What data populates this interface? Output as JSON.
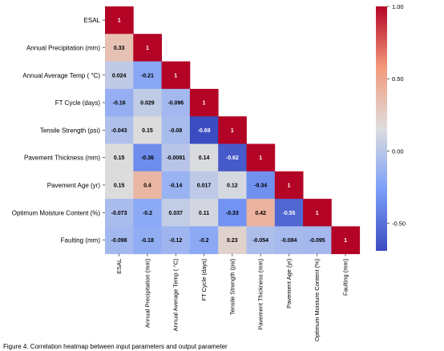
{
  "chart_data": {
    "type": "heatmap",
    "title": "",
    "variables": [
      "ESAL",
      "Annual Precipitation (mm)",
      "Annual Average Temp ( °C)",
      "FT Cycle (days)",
      "Tensile Strength (psi)",
      "Pavement Thickness (mm)",
      "Pavement Age (yr)",
      "Optimum Moisture Content (%)",
      "Faulting (mm)"
    ],
    "matrix": [
      [
        1
      ],
      [
        0.33,
        1
      ],
      [
        0.024,
        -0.21,
        1
      ],
      [
        -0.16,
        0.029,
        -0.096,
        1
      ],
      [
        -0.043,
        0.15,
        -0.08,
        -0.69,
        1
      ],
      [
        0.15,
        -0.36,
        -0.0081,
        0.14,
        -0.62,
        1
      ],
      [
        0.15,
        0.4,
        -0.14,
        0.017,
        0.12,
        -0.34,
        1
      ],
      [
        -0.073,
        -0.2,
        0.037,
        0.11,
        -0.33,
        0.42,
        -0.55,
        1
      ],
      [
        -0.098,
        -0.18,
        -0.12,
        -0.2,
        0.23,
        -0.054,
        -0.084,
        -0.095,
        1
      ]
    ],
    "labels": [
      [
        "1"
      ],
      [
        "0.33",
        "1"
      ],
      [
        "0.024",
        "-0.21",
        "1"
      ],
      [
        "-0.16",
        "0.029",
        "-0.096",
        "1"
      ],
      [
        "-0.043",
        "0.15",
        "-0.08",
        "-0.69",
        "1"
      ],
      [
        "0.15",
        "-0.36",
        "-0.0081",
        "0.14",
        "-0.62",
        "1"
      ],
      [
        "0.15",
        "0.4",
        "-0.14",
        "0.017",
        "0.12",
        "-0.34",
        "1"
      ],
      [
        "-0.073",
        "-0.2",
        "0.037",
        "0.11",
        "-0.33",
        "0.42",
        "-0.55",
        "1"
      ],
      [
        "-0.098",
        "-0.18",
        "-0.12",
        "-0.2",
        "0.23",
        "-0.054",
        "-0.084",
        "-0.095",
        "1"
      ]
    ],
    "mask": "upper-triangle",
    "colormap": "coolwarm",
    "vmin": -0.69,
    "vmax": 1.0,
    "colorbar": {
      "ticks": [
        1.0,
        0.5,
        0.0,
        -0.5
      ],
      "tick_labels": [
        "1.00",
        "0.50",
        "0.00",
        "-0.50"
      ],
      "placement": "right"
    },
    "xlabel": "",
    "ylabel": ""
  },
  "caption": "Figure 4. Correlation heatmap between input parameters and output parameter"
}
